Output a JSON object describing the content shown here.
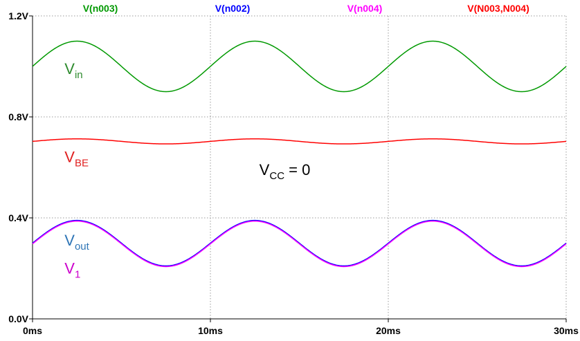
{
  "chart_data": {
    "type": "line",
    "title": "",
    "xlabel": "",
    "ylabel": "",
    "x_unit": "ms",
    "xlim": [
      0,
      30
    ],
    "ylim": [
      0,
      1.2
    ],
    "grid": true,
    "legend_placement": "top",
    "x_ticks": [
      {
        "value": 0,
        "label": "0ms"
      },
      {
        "value": 10,
        "label": "10ms"
      },
      {
        "value": 20,
        "label": "20ms"
      },
      {
        "value": 30,
        "label": "30ms"
      }
    ],
    "y_ticks": [
      {
        "value": 0.0,
        "label": "0.0V"
      },
      {
        "value": 0.4,
        "label": "0.4V"
      },
      {
        "value": 0.8,
        "label": "0.8V"
      },
      {
        "value": 1.2,
        "label": "1.2V"
      }
    ],
    "series": [
      {
        "name": "V(n003)",
        "color": "#009900",
        "offset": 1.0,
        "amplitude": 0.1,
        "frequency_hz": 100,
        "phase_deg": 0
      },
      {
        "name": "V(n002)",
        "color": "#0000ff",
        "offset": 0.3,
        "amplitude": 0.09,
        "frequency_hz": 100,
        "phase_deg": 0
      },
      {
        "name": "V(n004)",
        "color": "#ff00ff",
        "offset": 0.297,
        "amplitude": 0.09,
        "frequency_hz": 100,
        "phase_deg": 0
      },
      {
        "name": "V(N003,N004)",
        "color": "#ff0000",
        "offset": 0.703,
        "amplitude": 0.01,
        "frequency_hz": 100,
        "phase_deg": 0
      }
    ],
    "annotations": [
      {
        "id": "vin",
        "main": "V",
        "sub": "in",
        "color": "#2e8b2e",
        "x": 1.8,
        "y": 0.97
      },
      {
        "id": "vbe",
        "main": "V",
        "sub": "BE",
        "color": "#e02020",
        "x": 1.8,
        "y": 0.62
      },
      {
        "id": "vcc",
        "main": "V",
        "sub": "CC",
        "suffix": " = 0",
        "color": "#000000",
        "x": 12.75,
        "y": 0.57
      },
      {
        "id": "vout",
        "main": "V",
        "sub": "out",
        "color": "#2e75b6",
        "x": 1.8,
        "y": 0.29
      },
      {
        "id": "v1",
        "main": "V",
        "sub": "1",
        "color": "#cc00cc",
        "x": 1.8,
        "y": 0.18
      }
    ]
  }
}
